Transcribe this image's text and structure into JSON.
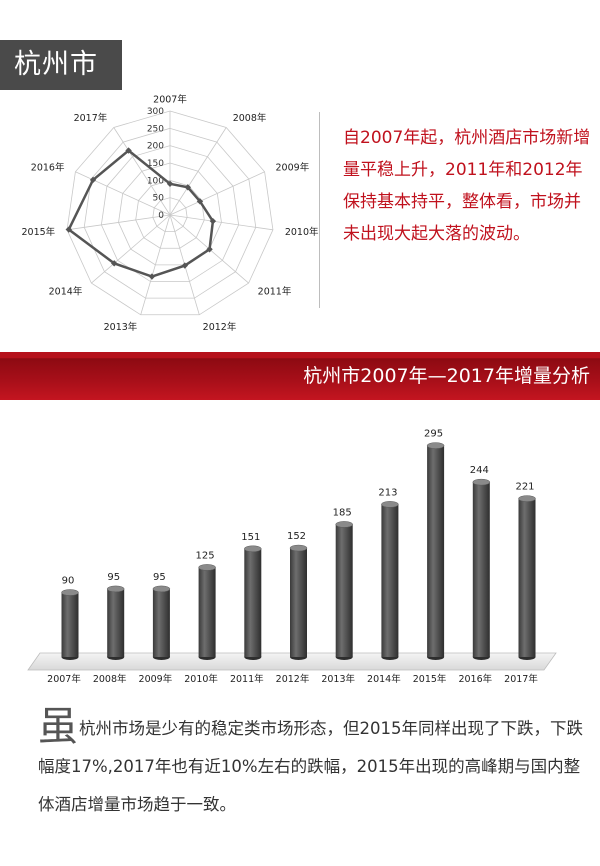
{
  "header": {
    "city": "杭州市"
  },
  "summary_text": "自2007年起，杭州酒店市场新增量平稳上升，2011年和2012年保持基本持平，整体看，市场并未出现大起大落的波动。",
  "banner_title": "杭州市2007年—2017年增量分析",
  "body": {
    "first_char": "虽",
    "rest": "杭州市场是少有的稳定类市场形态，但2015年同样出现了下跌，下跌幅度17%,2017年也有近10%左右的跌幅，2015年出现的高峰期与国内整体酒店增量市场趋于一致。"
  },
  "colors": {
    "accent_red": "#c0111d",
    "banner_red": "#a80f19",
    "bar_gray": "#4a4a4a",
    "radar_line": "#555555"
  },
  "chart_data": [
    {
      "type": "radar",
      "categories": [
        "2007年",
        "2008年",
        "2009年",
        "2010年",
        "2011年",
        "2012年",
        "2013年",
        "2014年",
        "2015年",
        "2016年",
        "2017年"
      ],
      "values": [
        90,
        95,
        95,
        125,
        151,
        152,
        185,
        213,
        295,
        244,
        221
      ],
      "rlim": [
        0,
        300
      ],
      "ticks": [
        "0",
        "50",
        "100",
        "150",
        "200",
        "250",
        "300"
      ]
    },
    {
      "type": "bar",
      "categories": [
        "2007年",
        "2008年",
        "2009年",
        "2010年",
        "2011年",
        "2012年",
        "2013年",
        "2014年",
        "2015年",
        "2016年",
        "2017年"
      ],
      "values": [
        90,
        95,
        95,
        125,
        151,
        152,
        185,
        213,
        295,
        244,
        221
      ],
      "data_labels": [
        "90",
        "95",
        "95",
        "125",
        "151",
        "152",
        "185",
        "213",
        "295",
        "244",
        "221"
      ],
      "ylim": [
        0,
        300
      ],
      "grid": false
    }
  ]
}
